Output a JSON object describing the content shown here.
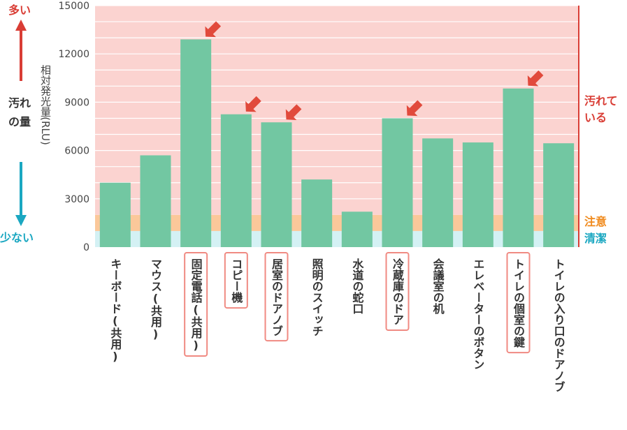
{
  "chart_data": {
    "type": "bar",
    "ylabel": "相対発光量(RLU)",
    "ylim": [
      0,
      15000
    ],
    "yticks": [
      "0",
      "3000",
      "6000",
      "9000",
      "12000",
      "15000"
    ],
    "categories": [
      "キーボード(共用)",
      "マウス(共用)",
      "固定電話(共用)",
      "コピー機",
      "居室のドアノブ",
      "照明のスイッチ",
      "水道の蛇口",
      "冷蔵庫のドア",
      "会議室の机",
      "エレベーターのボタン",
      "トイレの個室の鍵",
      "トイレの入り口のドアノブ"
    ],
    "values": [
      4000,
      5700,
      12900,
      8250,
      7750,
      4200,
      2200,
      8000,
      6750,
      6500,
      9850,
      6450
    ],
    "highlighted": [
      false,
      false,
      true,
      true,
      true,
      false,
      false,
      true,
      false,
      false,
      true,
      false
    ],
    "zones": [
      {
        "label": "清潔",
        "from": 0,
        "to": 1000,
        "color": "#d4f1f4"
      },
      {
        "label": "注意",
        "from": 1000,
        "to": 2000,
        "color": "#fbc89a"
      },
      {
        "label": "汚れている",
        "from": 2000,
        "to": 15000,
        "color": "#fbd3d0"
      }
    ],
    "colors": {
      "bar": "#72c7a2",
      "highlight_border": "#f08a82",
      "arrow": "#e14a3c",
      "up_arrow": "#d93d35",
      "down_arrow": "#1aa7c1",
      "clean_text": "#1aa7c1",
      "caution_text": "#f08a1d",
      "dirty_text": "#d93d35"
    }
  },
  "side_labels": {
    "more": "多い",
    "amount": "汚れの量",
    "less": "少ない"
  },
  "zone_labels": {
    "dirty": "汚れて\nいる",
    "caution": "注意",
    "clean": "清潔"
  }
}
